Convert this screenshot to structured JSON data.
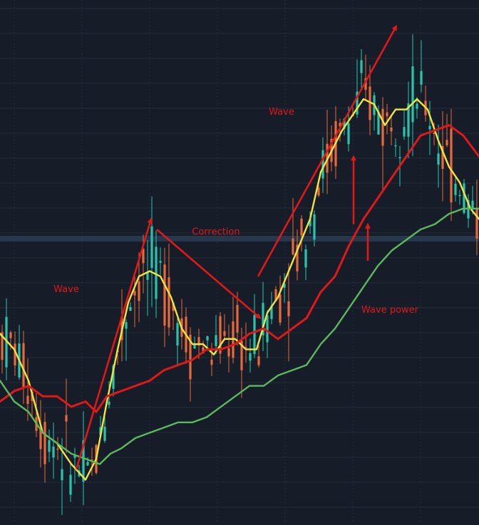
{
  "colors": {
    "background": "#161d28",
    "grid": "#232c3a",
    "candle_up": "#26c6ae",
    "candle_down": "#e8693a",
    "ma_fast": "#f2e43c",
    "ma_mid": "#e01818",
    "ma_slow": "#5cb85c",
    "band": "#2c3d52",
    "annotation": "#e01818"
  },
  "chart_data": {
    "type": "line",
    "x_range": [
      0,
      672
    ],
    "y_range": [
      0,
      100
    ],
    "grid": true,
    "candles": {
      "count": 112,
      "up_color": "candle_up",
      "down_color": "candle_down"
    },
    "series": [
      {
        "color": "ma_fast",
        "x": [
          0,
          20,
          40,
          60,
          80,
          100,
          120,
          135,
          150,
          165,
          180,
          195,
          210,
          225,
          240,
          255,
          270,
          285,
          300,
          315,
          330,
          345,
          360,
          375,
          390,
          405,
          420,
          435,
          450,
          465,
          480,
          495,
          510,
          525,
          540,
          555,
          570,
          585,
          600,
          615,
          630,
          645,
          660,
          672
        ],
        "y": [
          36,
          33,
          27,
          17,
          15,
          11,
          8,
          12,
          23,
          33,
          42,
          47,
          48,
          47,
          43,
          37,
          34,
          34,
          32,
          35,
          35,
          33,
          33,
          40,
          43,
          48,
          53,
          58,
          67,
          71,
          75,
          78,
          81,
          80,
          76,
          79,
          79,
          81,
          79,
          73,
          68,
          65,
          60,
          58
        ]
      },
      {
        "color": "ma_mid",
        "x": [
          0,
          20,
          40,
          60,
          80,
          100,
          120,
          135,
          150,
          170,
          190,
          210,
          230,
          250,
          270,
          290,
          310,
          330,
          350,
          370,
          390,
          410,
          430,
          450,
          470,
          490,
          510,
          530,
          550,
          570,
          590,
          610,
          630,
          650,
          672
        ],
        "y": [
          23,
          25,
          26,
          24,
          24,
          22,
          23,
          21,
          24,
          25,
          26,
          27,
          29,
          30,
          31,
          33,
          33,
          34,
          36,
          37,
          35,
          37,
          39,
          44,
          47,
          53,
          58,
          62,
          66,
          70,
          74,
          75,
          76,
          74,
          70
        ]
      },
      {
        "color": "ma_slow",
        "x": [
          0,
          20,
          40,
          60,
          80,
          100,
          120,
          140,
          155,
          170,
          190,
          210,
          230,
          250,
          270,
          290,
          310,
          330,
          350,
          370,
          390,
          410,
          430,
          450,
          470,
          490,
          510,
          530,
          550,
          570,
          590,
          610,
          630,
          650,
          672
        ],
        "y": [
          27,
          23,
          21,
          17,
          15,
          13,
          12,
          11,
          13,
          14,
          16,
          17,
          18,
          19,
          19,
          20,
          22,
          24,
          26,
          26,
          28,
          29,
          30,
          34,
          37,
          41,
          45,
          49,
          52,
          54,
          56,
          57,
          59,
          60,
          60
        ]
      }
    ],
    "annotations": [
      {
        "text": "Wave",
        "x": 93,
        "y": 44
      },
      {
        "text": "Correction",
        "x": 303,
        "y": 55
      },
      {
        "text": "Wave",
        "x": 395,
        "y": 78
      },
      {
        "text": "Wave power",
        "x": 547,
        "y": 40
      }
    ]
  }
}
